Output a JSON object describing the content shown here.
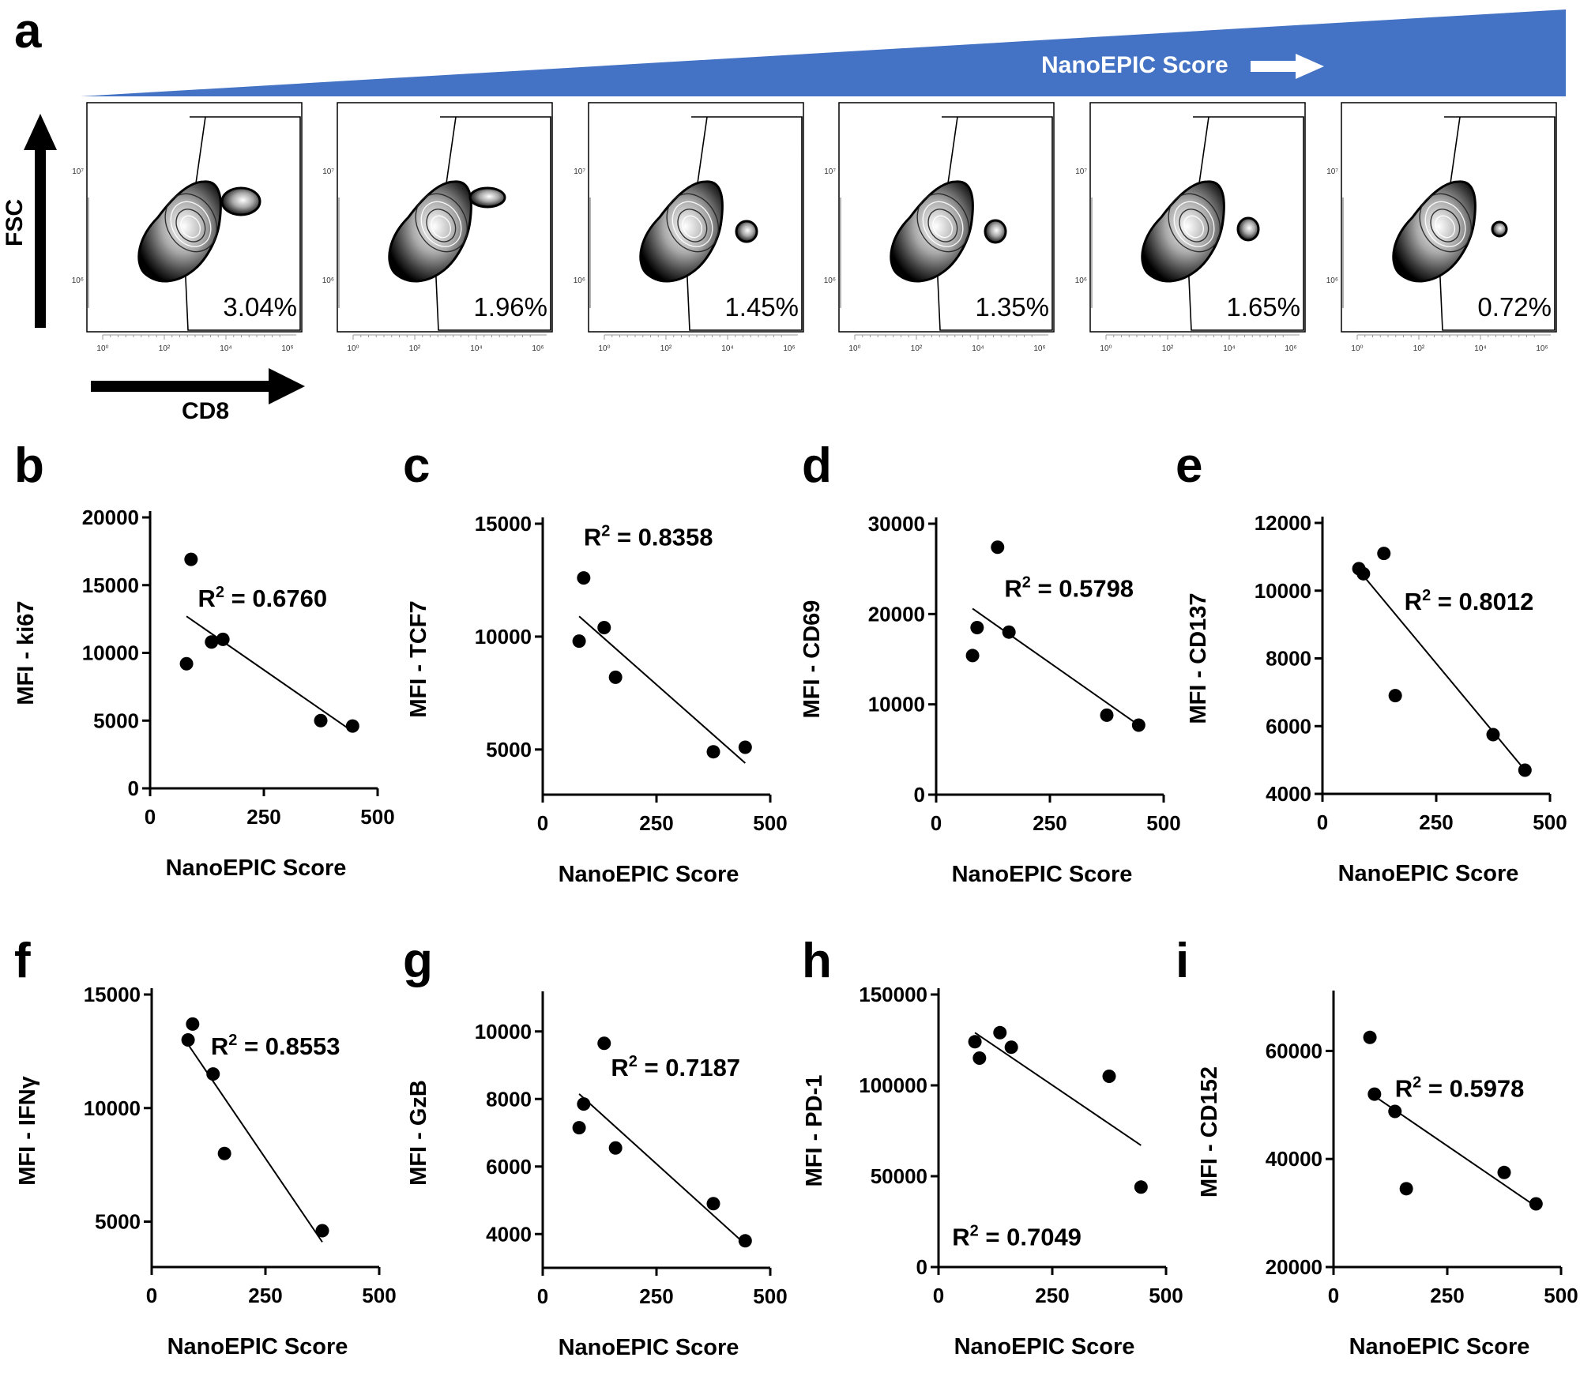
{
  "figure_panel_a": {
    "letter": "a",
    "banner_label": "NanoEPIC Score",
    "banner_color": "#4472C4",
    "y_axis_label": "FSC",
    "x_axis_label": "CD8",
    "flow_y_ticks": [
      "10⁷",
      "10⁶"
    ],
    "flow_x_ticks": [
      "10⁰",
      "10²",
      "10⁴",
      "10⁶"
    ],
    "gate_percentages": [
      "3.04%",
      "1.96%",
      "1.45%",
      "1.35%",
      "1.65%",
      "0.72%"
    ]
  },
  "chart_data": [
    {
      "letter": "b",
      "type": "scatter",
      "xlabel": "NanoEPIC Score",
      "ylabel": "MFI - ki67",
      "r2_label": "R² = 0.6760",
      "r2_base": "R",
      "r2_sup": "2",
      "r2_value": " = 0.6760",
      "xlim": [
        0,
        500
      ],
      "ylim": [
        0,
        20000
      ],
      "xticks": [
        0,
        250,
        500
      ],
      "yticks": [
        0,
        5000,
        10000,
        15000,
        20000
      ],
      "points": [
        [
          80,
          9200
        ],
        [
          90,
          16900
        ],
        [
          135,
          10800
        ],
        [
          160,
          11000
        ],
        [
          375,
          5000
        ],
        [
          445,
          4600
        ]
      ],
      "fit": [
        [
          80,
          12700
        ],
        [
          445,
          4200
        ]
      ]
    },
    {
      "letter": "c",
      "type": "scatter",
      "xlabel": "NanoEPIC Score",
      "ylabel": "MFI - TCF7",
      "r2_label": "R² = 0.8358",
      "r2_base": "R",
      "r2_sup": "2",
      "r2_value": " = 0.8358",
      "xlim": [
        0,
        500
      ],
      "ylim": [
        3000,
        15000
      ],
      "xticks": [
        0,
        250,
        500
      ],
      "yticks": [
        5000,
        10000,
        15000
      ],
      "points": [
        [
          80,
          9800
        ],
        [
          90,
          12600
        ],
        [
          135,
          10400
        ],
        [
          160,
          8200
        ],
        [
          375,
          4900
        ],
        [
          445,
          5100
        ]
      ],
      "fit": [
        [
          80,
          10900
        ],
        [
          445,
          4400
        ]
      ]
    },
    {
      "letter": "d",
      "type": "scatter",
      "xlabel": "NanoEPIC Score",
      "ylabel": "MFI - CD69",
      "r2_label": "R² = 0.5798",
      "r2_base": "R",
      "r2_sup": "2",
      "r2_value": " = 0.5798",
      "xlim": [
        0,
        500
      ],
      "ylim": [
        0,
        30000
      ],
      "xticks": [
        0,
        250,
        500
      ],
      "yticks": [
        0,
        10000,
        20000,
        30000
      ],
      "points": [
        [
          80,
          15400
        ],
        [
          90,
          18500
        ],
        [
          135,
          27400
        ],
        [
          160,
          18000
        ],
        [
          375,
          8800
        ],
        [
          445,
          7700
        ]
      ],
      "fit": [
        [
          80,
          20600
        ],
        [
          445,
          7700
        ]
      ]
    },
    {
      "letter": "e",
      "type": "scatter",
      "xlabel": "NanoEPIC Score",
      "ylabel": "MFI - CD137",
      "r2_label": "R² = 0.8012",
      "r2_base": "R",
      "r2_sup": "2",
      "r2_value": " = 0.8012",
      "xlim": [
        0,
        500
      ],
      "ylim": [
        4000,
        12000
      ],
      "xticks": [
        0,
        250,
        500
      ],
      "yticks": [
        4000,
        6000,
        8000,
        10000,
        12000
      ],
      "points": [
        [
          80,
          10650
        ],
        [
          90,
          10500
        ],
        [
          135,
          11100
        ],
        [
          160,
          6900
        ],
        [
          375,
          5750
        ],
        [
          445,
          4700
        ]
      ],
      "fit": [
        [
          80,
          10600
        ],
        [
          445,
          4700
        ]
      ]
    },
    {
      "letter": "f",
      "type": "scatter",
      "xlabel": "NanoEPIC Score",
      "ylabel": "MFI - IFNγ",
      "r2_label": "R² = 0.8553",
      "r2_base": "R",
      "r2_sup": "2",
      "r2_value": " = 0.8553",
      "xlim": [
        0,
        500
      ],
      "ylim": [
        3000,
        15000
      ],
      "xticks": [
        0,
        250,
        500
      ],
      "yticks": [
        5000,
        10000,
        15000
      ],
      "points": [
        [
          80,
          13000
        ],
        [
          90,
          13700
        ],
        [
          135,
          11500
        ],
        [
          160,
          8000
        ],
        [
          375,
          4600
        ]
      ],
      "fit": [
        [
          80,
          12800
        ],
        [
          375,
          4100
        ]
      ]
    },
    {
      "letter": "g",
      "type": "scatter",
      "xlabel": "NanoEPIC Score",
      "ylabel": "MFI - GzB",
      "r2_label": "R² = 0.7187",
      "r2_base": "R",
      "r2_sup": "2",
      "r2_value": " = 0.7187",
      "xlim": [
        0,
        500
      ],
      "ylim": [
        3000,
        11000
      ],
      "xticks": [
        0,
        250,
        500
      ],
      "yticks": [
        4000,
        6000,
        8000,
        10000
      ],
      "points": [
        [
          80,
          7150
        ],
        [
          90,
          7850
        ],
        [
          135,
          9650
        ],
        [
          160,
          6550
        ],
        [
          375,
          4900
        ],
        [
          445,
          3800
        ]
      ],
      "fit": [
        [
          80,
          8150
        ],
        [
          445,
          3700
        ]
      ]
    },
    {
      "letter": "h",
      "type": "scatter",
      "xlabel": "NanoEPIC Score",
      "ylabel": "MFI - PD-1",
      "r2_label": "R² = 0.7049",
      "r2_base": "R",
      "r2_sup": "2",
      "r2_value": " = 0.7049",
      "r2_position": "bottom-left",
      "xlim": [
        0,
        500
      ],
      "ylim": [
        0,
        150000
      ],
      "xticks": [
        0,
        250,
        500
      ],
      "yticks": [
        0,
        50000,
        100000,
        150000
      ],
      "points": [
        [
          80,
          124000
        ],
        [
          90,
          115000
        ],
        [
          135,
          129000
        ],
        [
          160,
          121000
        ],
        [
          375,
          105000
        ],
        [
          445,
          44000
        ]
      ],
      "fit": [
        [
          80,
          129000
        ],
        [
          445,
          67000
        ]
      ]
    },
    {
      "letter": "i",
      "type": "scatter",
      "xlabel": "NanoEPIC Score",
      "ylabel": "MFI - CD152",
      "r2_label": "R² = 0.5978",
      "r2_base": "R",
      "r2_sup": "2",
      "r2_value": " = 0.5978",
      "xlim": [
        0,
        500
      ],
      "ylim": [
        20000,
        70000
      ],
      "xticks": [
        0,
        250,
        500
      ],
      "yticks": [
        20000,
        40000,
        60000
      ],
      "points": [
        [
          80,
          62500
        ],
        [
          90,
          52000
        ],
        [
          135,
          48800
        ],
        [
          160,
          34500
        ],
        [
          375,
          37500
        ],
        [
          445,
          31700
        ]
      ],
      "fit": [
        [
          80,
          52200
        ],
        [
          445,
          31200
        ]
      ]
    }
  ]
}
